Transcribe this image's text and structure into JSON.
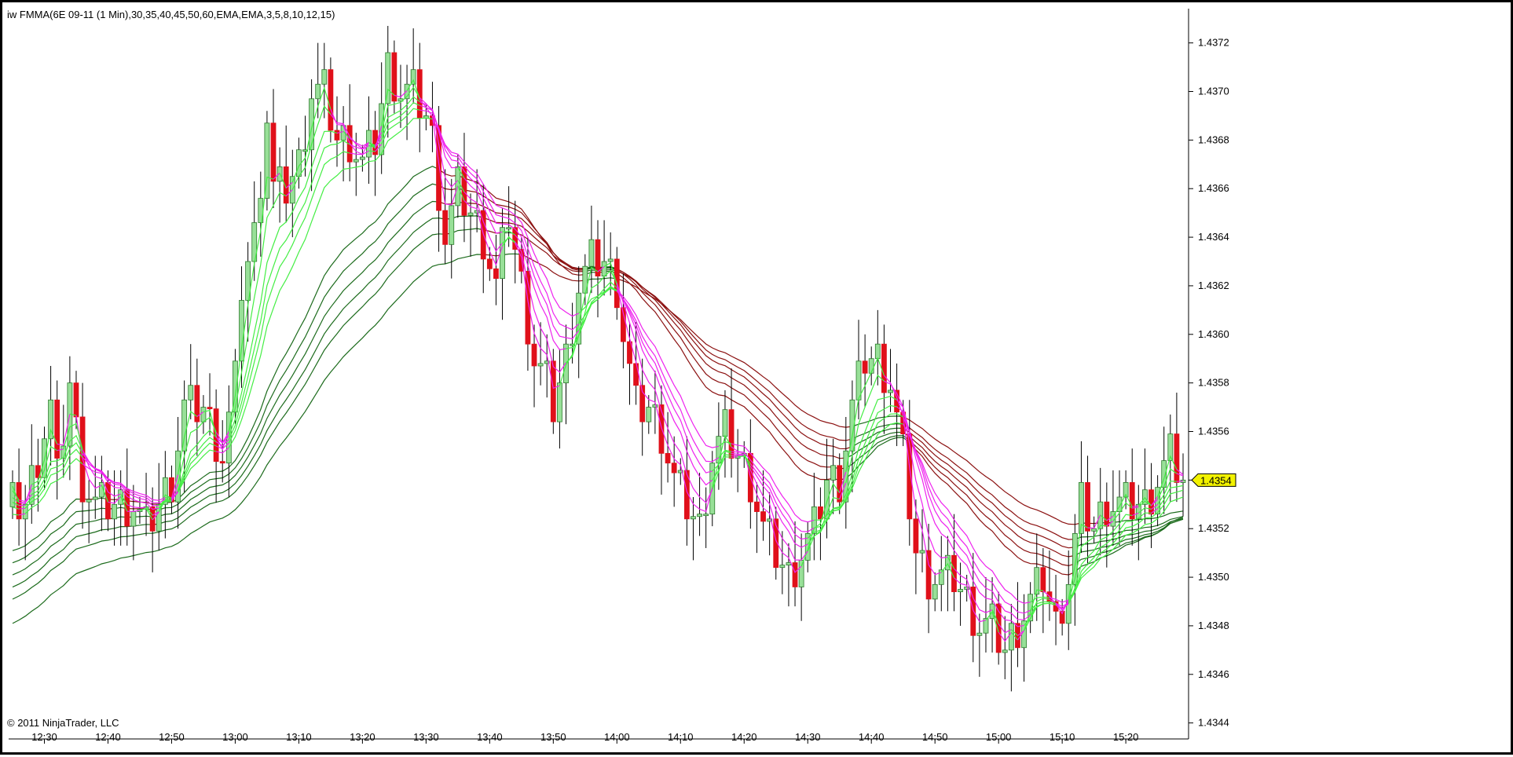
{
  "window": {
    "indicator_title": "iw FMMA(6E  09-11  (1 Min),30,35,40,45,50,60,EMA,EMA,3,5,8,10,12,15)",
    "copyright": "© 2011 NinjaTrader, LLC",
    "last_price_label": "1.4354"
  },
  "colors": {
    "up_candle": "#98e098",
    "down_candle": "#e0101a",
    "fast_rising": "#44ee44",
    "fast_falling": "#ee22ee",
    "slow_rising": "#1c6b1c",
    "slow_falling": "#8b1010",
    "last_price_bg": "#f2f200"
  },
  "chart_data": {
    "type": "candlestick",
    "symbol": "6E 09-11",
    "interval": "1 Min",
    "y_ticks": [
      "1.4344",
      "1.4346",
      "1.4348",
      "1.4350",
      "1.4352",
      "1.4354",
      "1.4356",
      "1.4358",
      "1.4360",
      "1.4362",
      "1.4364",
      "1.4366",
      "1.4368",
      "1.4370",
      "1.4372"
    ],
    "x_ticks": [
      "12:30",
      "12:40",
      "12:50",
      "13:00",
      "13:10",
      "13:20",
      "13:30",
      "13:40",
      "13:50",
      "14:00",
      "14:10",
      "14:20",
      "14:30",
      "14:40",
      "14:50",
      "15:00",
      "15:10",
      "15:20"
    ],
    "ylim": [
      1.43436,
      1.43727
    ],
    "time_range": [
      "12:25",
      "15:29"
    ],
    "last_price": 1.4354,
    "fast_periods": [
      3,
      5,
      8,
      10,
      12,
      15
    ],
    "slow_periods": [
      30,
      35,
      40,
      45,
      50,
      60
    ],
    "close_keypoints": [
      [
        "12:25",
        1.4353
      ],
      [
        "12:27",
        1.4353
      ],
      [
        "12:29",
        1.4355
      ],
      [
        "12:31",
        1.4357
      ],
      [
        "12:32",
        1.4354
      ],
      [
        "12:34",
        1.4358
      ],
      [
        "12:36",
        1.4354
      ],
      [
        "12:38",
        1.4353
      ],
      [
        "12:40",
        1.4353
      ],
      [
        "12:44",
        1.4353
      ],
      [
        "12:46",
        1.4352
      ],
      [
        "12:48",
        1.4353
      ],
      [
        "12:50",
        1.4354
      ],
      [
        "12:52",
        1.4357
      ],
      [
        "12:55",
        1.4357
      ],
      [
        "12:58",
        1.4355
      ],
      [
        "13:00",
        1.4358
      ],
      [
        "13:01",
        1.4362
      ],
      [
        "13:03",
        1.4364
      ],
      [
        "13:05",
        1.4369
      ],
      [
        "13:06",
        1.4366
      ],
      [
        "13:08",
        1.4366
      ],
      [
        "13:10",
        1.4367
      ],
      [
        "13:12",
        1.437
      ],
      [
        "13:14",
        1.437
      ],
      [
        "13:16",
        1.4368
      ],
      [
        "13:18",
        1.4368
      ],
      [
        "13:20",
        1.4367
      ],
      [
        "13:22",
        1.4368
      ],
      [
        "13:24",
        1.4371
      ],
      [
        "13:26",
        1.437
      ],
      [
        "13:28",
        1.437
      ],
      [
        "13:30",
        1.4369
      ],
      [
        "13:31",
        1.4368
      ],
      [
        "13:33",
        1.4364
      ],
      [
        "13:35",
        1.4366
      ],
      [
        "13:37",
        1.4365
      ],
      [
        "13:39",
        1.4364
      ],
      [
        "13:41",
        1.4362
      ],
      [
        "13:43",
        1.4365
      ],
      [
        "13:45",
        1.4362
      ],
      [
        "13:47",
        1.4359
      ],
      [
        "13:49",
        1.4358
      ],
      [
        "13:50",
        1.4357
      ],
      [
        "13:52",
        1.4359
      ],
      [
        "13:54",
        1.4362
      ],
      [
        "13:56",
        1.4363
      ],
      [
        "13:58",
        1.4363
      ],
      [
        "14:00",
        1.4362
      ],
      [
        "14:01",
        1.436
      ],
      [
        "14:03",
        1.4357
      ],
      [
        "14:05",
        1.4357
      ],
      [
        "14:07",
        1.4356
      ],
      [
        "14:09",
        1.4354
      ],
      [
        "14:11",
        1.4353
      ],
      [
        "14:13",
        1.4352
      ],
      [
        "14:15",
        1.4355
      ],
      [
        "14:17",
        1.4356
      ],
      [
        "14:19",
        1.4355
      ],
      [
        "14:21",
        1.4354
      ],
      [
        "14:23",
        1.4352
      ],
      [
        "14:25",
        1.4351
      ],
      [
        "14:27",
        1.435
      ],
      [
        "14:29",
        1.4351
      ],
      [
        "14:31",
        1.4352
      ],
      [
        "14:33",
        1.4354
      ],
      [
        "14:35",
        1.4354
      ],
      [
        "14:37",
        1.4357
      ],
      [
        "14:39",
        1.4359
      ],
      [
        "14:41",
        1.4359
      ],
      [
        "14:43",
        1.4358
      ],
      [
        "14:45",
        1.4355
      ],
      [
        "14:47",
        1.4351
      ],
      [
        "14:49",
        1.435
      ],
      [
        "14:51",
        1.435
      ],
      [
        "14:53",
        1.435
      ],
      [
        "14:55",
        1.4349
      ],
      [
        "14:57",
        1.4348
      ],
      [
        "14:59",
        1.4348
      ],
      [
        "15:01",
        1.4347
      ],
      [
        "15:03",
        1.4348
      ],
      [
        "15:05",
        1.4349
      ],
      [
        "15:07",
        1.435
      ],
      [
        "15:09",
        1.4348
      ],
      [
        "15:11",
        1.435
      ],
      [
        "15:13",
        1.4353
      ],
      [
        "15:15",
        1.4352
      ],
      [
        "15:17",
        1.4353
      ],
      [
        "15:19",
        1.4353
      ],
      [
        "15:21",
        1.4353
      ],
      [
        "15:23",
        1.4353
      ],
      [
        "15:25",
        1.4354
      ],
      [
        "15:27",
        1.4355
      ],
      [
        "15:29",
        1.4354
      ]
    ]
  }
}
